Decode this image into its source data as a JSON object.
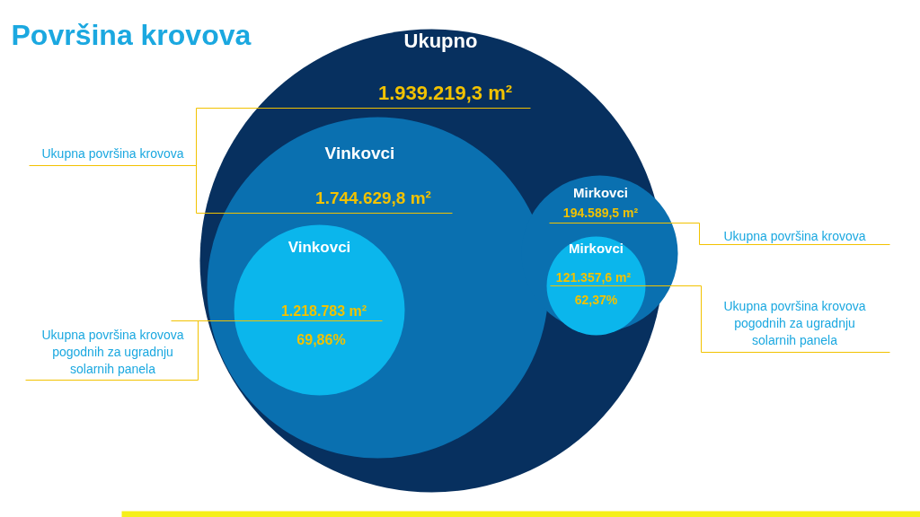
{
  "chart_data": {
    "type": "other",
    "title": "Površina krovova",
    "categories": [
      "Ukupno",
      "Vinkovci",
      "Vinkovci",
      "Mirkovci",
      "Mirkovci"
    ],
    "values": [
      1939219.3,
      1744629.8,
      1218783,
      194589.5,
      121357.6
    ],
    "value_labels": [
      "1.939.219,3 m²",
      "1.744.629,8 m²",
      "1.218.783 m²",
      "194.589,5 m²",
      "121.357,6 m²"
    ],
    "colors": [
      "#07305f",
      "#0a70b0",
      "#0bb6ec",
      "#0a70b0",
      "#0bb6ec"
    ],
    "annotations": [
      "69,86%",
      "62,37%",
      "Ukupna površina krovova",
      "Ukupna površina krovova pogodnih za ugradnju solarnih panela",
      "Ukupna površina krovova",
      "Ukupna površina krovova pogodnih za ugradnju solarnih panela"
    ]
  }
}
